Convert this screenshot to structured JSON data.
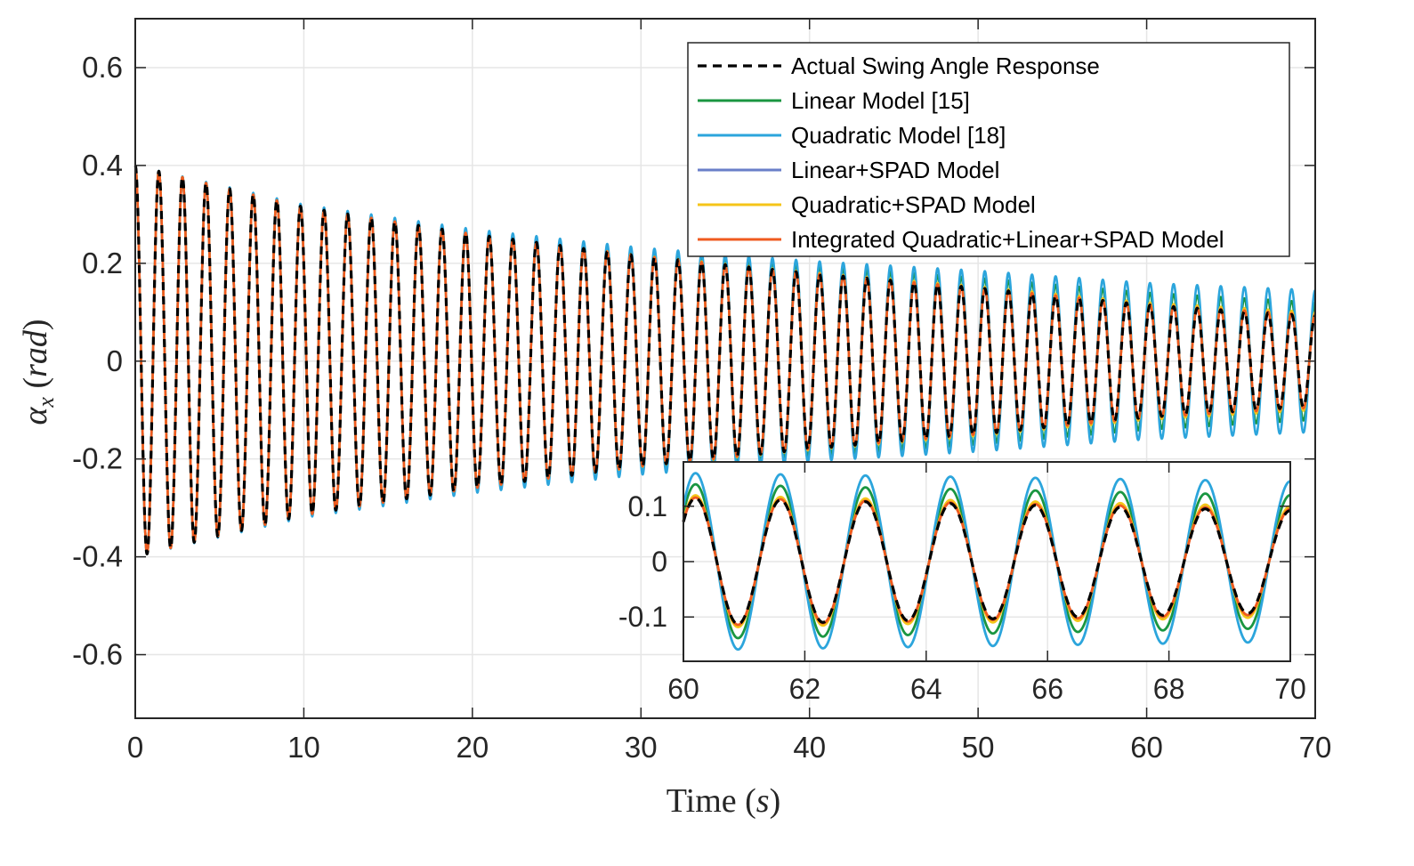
{
  "chart_data": [
    {
      "type": "line",
      "xlabel": {
        "text": "Time",
        "unit": "s"
      },
      "ylabel": {
        "symbol": "α",
        "subscript": "x",
        "unit": "rad"
      },
      "xlim": [
        0,
        70
      ],
      "ylim": [
        -0.73,
        0.7
      ],
      "xticks": [
        0,
        10,
        20,
        30,
        40,
        50,
        60,
        70
      ],
      "yticks": [
        -0.6,
        -0.4,
        -0.2,
        0,
        0.2,
        0.4,
        0.6
      ],
      "xtick_labels": [
        "0",
        "10",
        "20",
        "30",
        "40",
        "50",
        "60",
        "70"
      ],
      "ytick_labels": [
        "-0.6",
        "-0.4",
        "-0.2",
        "0",
        "0.2",
        "0.4",
        "0.6"
      ],
      "grid": true,
      "legend_position": "top-right",
      "signal_model": {
        "initial_value": 0.4,
        "period": 1.4,
        "envelope_time": [
          0,
          10,
          20,
          30,
          40,
          50,
          60,
          70
        ],
        "oscillation_center": 0.0
      },
      "series": [
        {
          "name": "Actual Swing Angle Response",
          "color": "#000000",
          "dashed": true,
          "envelope": [
            0.4,
            0.315,
            0.26,
            0.215,
            0.18,
            0.15,
            0.115,
            0.092
          ]
        },
        {
          "name": "Linear Model [15]",
          "color": "#1a9641",
          "dashed": false,
          "envelope": [
            0.4,
            0.318,
            0.265,
            0.225,
            0.195,
            0.17,
            0.14,
            0.12
          ]
        },
        {
          "name": "Quadratic Model [18]",
          "color": "#2ca5dc",
          "dashed": false,
          "envelope": [
            0.4,
            0.32,
            0.27,
            0.232,
            0.205,
            0.185,
            0.16,
            0.145
          ]
        },
        {
          "name": "Linear+SPAD Model",
          "color": "#6a7fc8",
          "dashed": false,
          "envelope": [
            0.4,
            0.315,
            0.26,
            0.215,
            0.18,
            0.15,
            0.118,
            0.098
          ]
        },
        {
          "name": "Quadratic+SPAD Model",
          "color": "#f5c518",
          "dashed": false,
          "envelope": [
            0.4,
            0.315,
            0.26,
            0.216,
            0.182,
            0.153,
            0.12,
            0.1
          ]
        },
        {
          "name": "Integrated Quadratic+Linear+SPAD Model",
          "color": "#ef5a1f",
          "dashed": false,
          "envelope": [
            0.4,
            0.315,
            0.26,
            0.215,
            0.18,
            0.15,
            0.116,
            0.095
          ]
        }
      ]
    },
    {
      "type": "line",
      "inset": true,
      "xlim": [
        60,
        70
      ],
      "ylim": [
        -0.18,
        0.18
      ],
      "xticks": [
        60,
        62,
        64,
        66,
        68,
        70
      ],
      "yticks": [
        -0.1,
        0,
        0.1
      ],
      "xtick_labels": [
        "60",
        "62",
        "64",
        "66",
        "68",
        "70"
      ],
      "ytick_labels": [
        "-0.1",
        "0",
        "0.1"
      ],
      "grid": true
    }
  ]
}
